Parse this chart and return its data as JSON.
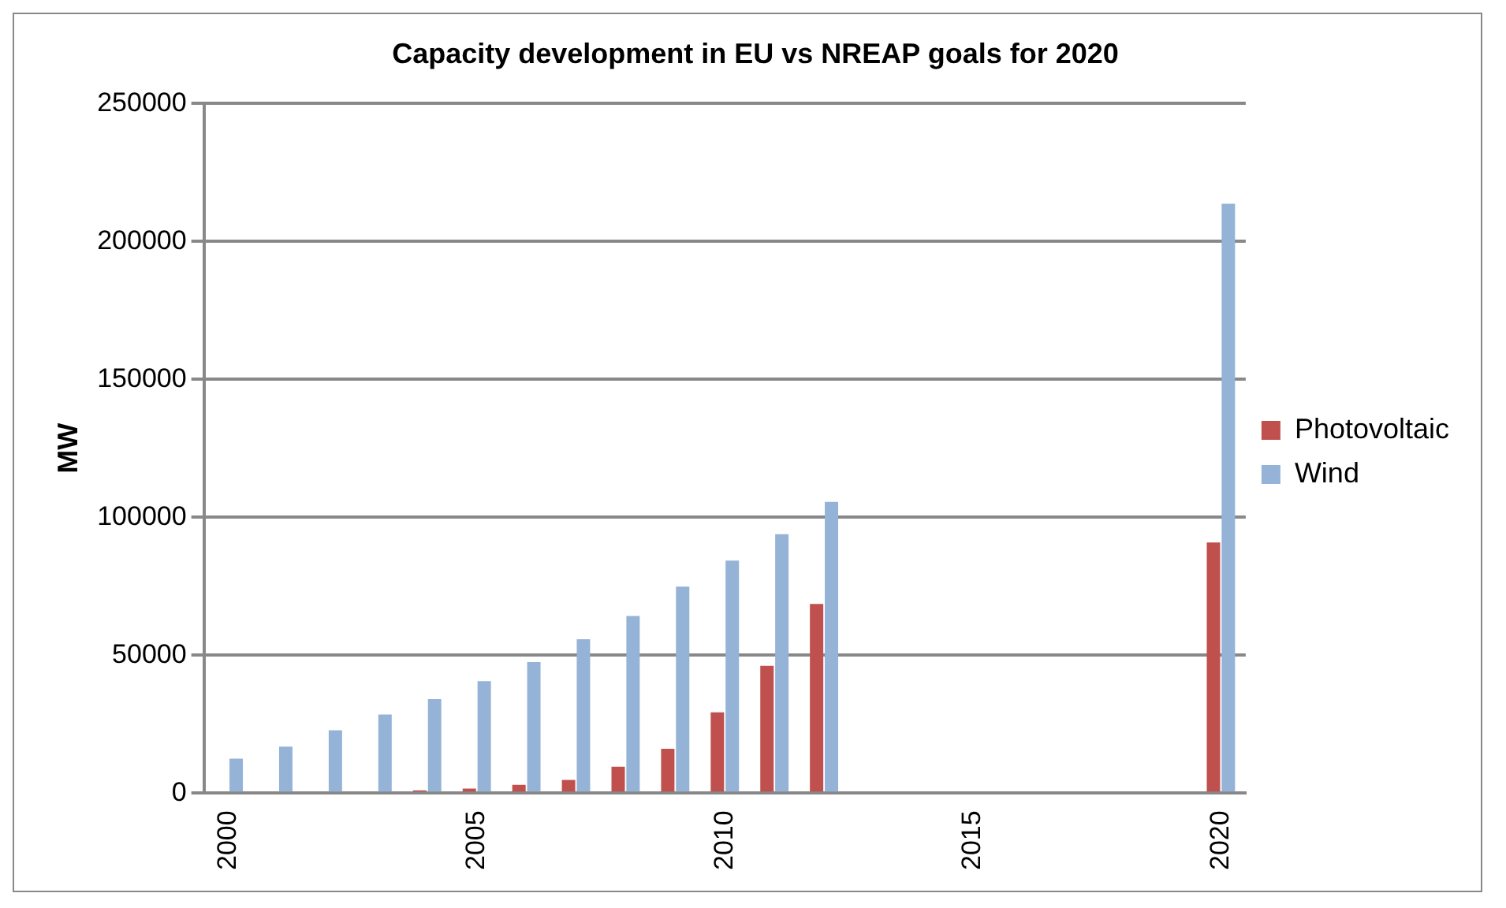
{
  "chart_data": {
    "type": "bar",
    "title": "Capacity development in EU vs NREAP goals for 2020",
    "ylabel": "MW",
    "categories": [
      "2000",
      null,
      null,
      null,
      null,
      "2005",
      null,
      null,
      null,
      null,
      "2010",
      null,
      null,
      null,
      null,
      "2015",
      null,
      null,
      null,
      null,
      "2020"
    ],
    "series": [
      {
        "name": "Photovoltaic",
        "color": "#c0504d",
        "values": [
          null,
          null,
          null,
          600,
          1000,
          1700,
          3000,
          4800,
          9600,
          16100,
          29300,
          46200,
          68600,
          null,
          null,
          null,
          null,
          null,
          null,
          null,
          90900
        ]
      },
      {
        "name": "Wind",
        "color": "#95b3d7",
        "values": [
          12500,
          16900,
          22800,
          28500,
          34100,
          40600,
          47500,
          55800,
          64200,
          74900,
          84300,
          93900,
          105600,
          null,
          null,
          null,
          null,
          null,
          null,
          null,
          213600
        ]
      }
    ],
    "ylim": [
      0,
      250000
    ],
    "yticks": [
      0,
      50000,
      100000,
      150000,
      200000,
      250000
    ],
    "grid": "y",
    "legend": "right"
  }
}
